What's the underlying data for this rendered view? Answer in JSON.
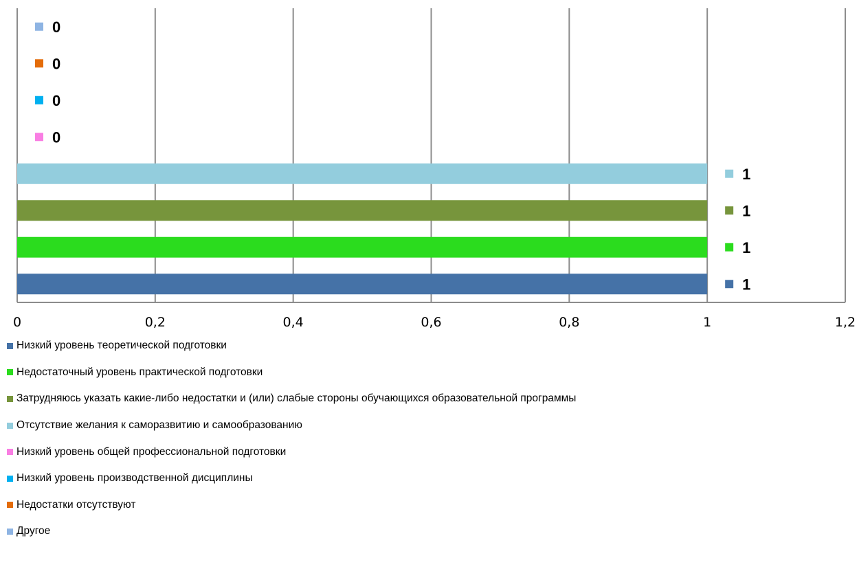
{
  "chart_data": {
    "type": "bar",
    "orientation": "horizontal",
    "xlim": [
      0,
      1.2
    ],
    "x_ticks": [
      "0",
      "0,2",
      "0,4",
      "0,6",
      "0,8",
      "1",
      "1,2"
    ],
    "grid": true,
    "legend_position": "bottom",
    "series": [
      {
        "name": "Низкий уровень теоретической подготовки",
        "value": 1,
        "value_label": "1",
        "color": "#4572a7"
      },
      {
        "name": "Недостаточный уровень практической подготовки",
        "value": 1,
        "value_label": "1",
        "color": "#2bdc1e"
      },
      {
        "name": "Затрудняюсь указать какие-либо недостатки и (или) слабые стороны обучающихся образовательной программы",
        "value": 1,
        "value_label": "1",
        "color": "#77953c"
      },
      {
        "name": "Отсутствие желания к саморазвитию и самообразованию",
        "value": 1,
        "value_label": "1",
        "color": "#93cddd"
      },
      {
        "name": "Низкий уровень общей профессиональной подготовки",
        "value": 0,
        "value_label": "0",
        "color": "#f97ee3"
      },
      {
        "name": "Низкий уровень производственной дисциплины",
        "value": 0,
        "value_label": "0",
        "color": "#00b0f0"
      },
      {
        "name": "Недостатки отсутствуют",
        "value": 0,
        "value_label": "0",
        "color": "#e46c0a"
      },
      {
        "name": "Другое",
        "value": 0,
        "value_label": "0",
        "color": "#8eb4e3"
      }
    ]
  }
}
